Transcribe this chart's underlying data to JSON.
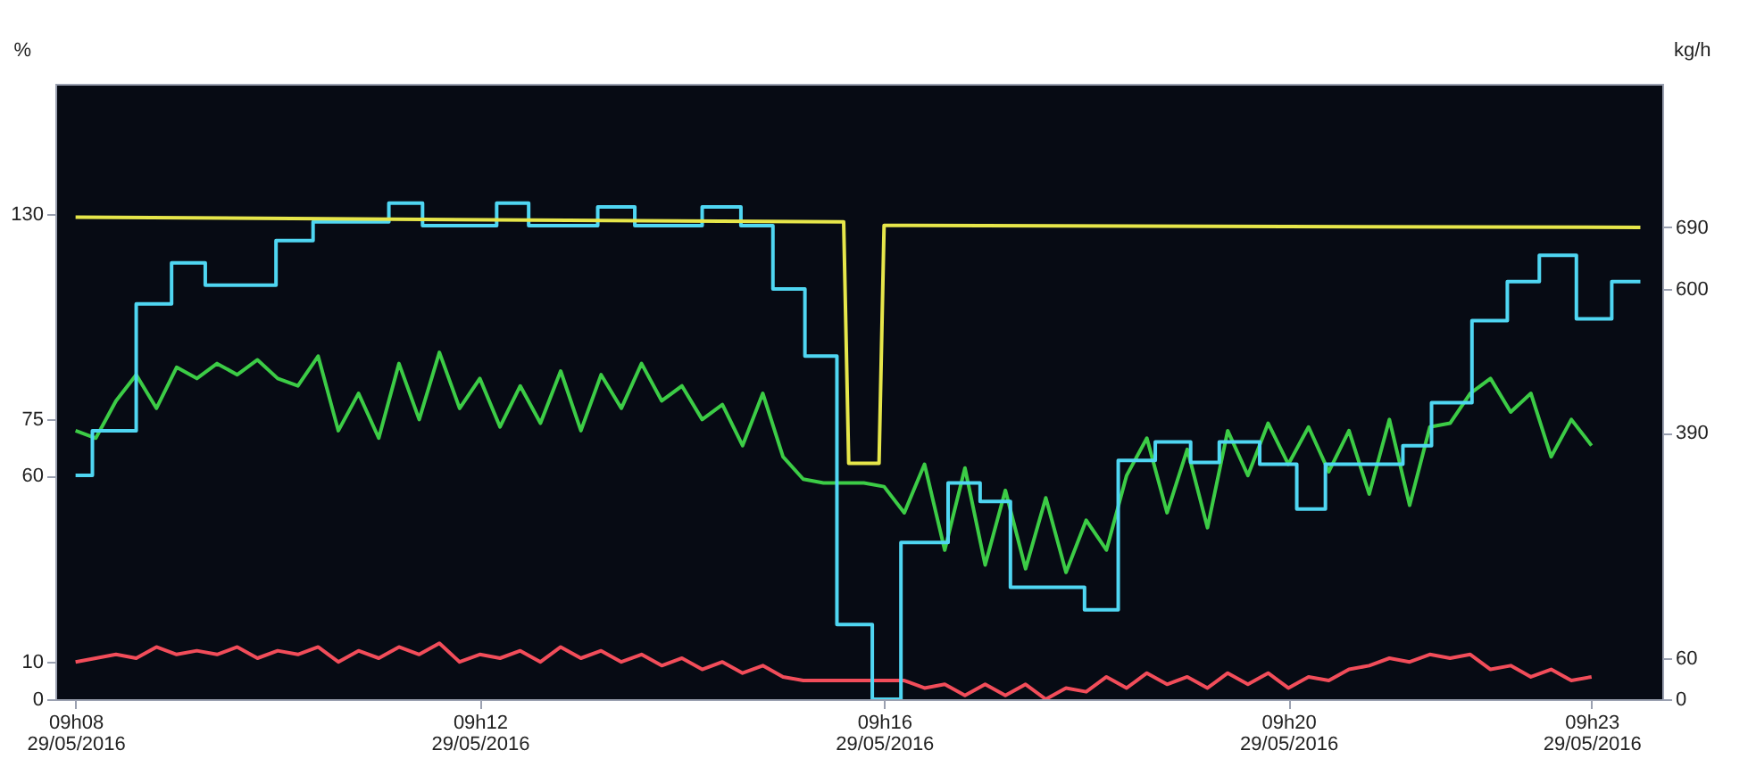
{
  "chart_data": {
    "type": "line",
    "ylabel": "%",
    "y2label": "kg/h",
    "xlim": [
      "2016-05-29T09:07:48",
      "2016-05-29T09:23:42"
    ],
    "ylim": [
      0,
      165
    ],
    "y2lim": [
      0,
      900
    ],
    "xticks": [
      {
        "value": "2016-05-29T09:08",
        "label": "09h08\n29/05/2016"
      },
      {
        "value": "2016-05-29T09:12",
        "label": "09h12\n29/05/2016"
      },
      {
        "value": "2016-05-29T09:16",
        "label": "09h16\n29/05/2016"
      },
      {
        "value": "2016-05-29T09:20",
        "label": "09h20\n29/05/2016"
      },
      {
        "value": "2016-05-29T09:23",
        "label": "09h23\n29/05/2016"
      }
    ],
    "yticks": [
      0,
      10,
      60,
      75,
      130
    ],
    "y2ticks": [
      0,
      60,
      390,
      600,
      690
    ],
    "grid": false,
    "marker": "none",
    "line_style": "solid",
    "x": [
      "2016-05-29T09:08:00",
      "2016-05-29T09:08:12",
      "2016-05-29T09:08:24",
      "2016-05-29T09:08:36",
      "2016-05-29T09:08:48",
      "2016-05-29T09:09:00",
      "2016-05-29T09:09:12",
      "2016-05-29T09:09:24",
      "2016-05-29T09:09:36",
      "2016-05-29T09:09:48",
      "2016-05-29T09:10:00",
      "2016-05-29T09:10:12",
      "2016-05-29T09:10:24",
      "2016-05-29T09:10:36",
      "2016-05-29T09:10:48",
      "2016-05-29T09:11:00",
      "2016-05-29T09:11:12",
      "2016-05-29T09:11:24",
      "2016-05-29T09:11:36",
      "2016-05-29T09:11:48",
      "2016-05-29T09:12:00",
      "2016-05-29T09:12:12",
      "2016-05-29T09:12:24",
      "2016-05-29T09:12:36",
      "2016-05-29T09:12:48",
      "2016-05-29T09:13:00",
      "2016-05-29T09:13:12",
      "2016-05-29T09:13:24",
      "2016-05-29T09:13:36",
      "2016-05-29T09:13:48",
      "2016-05-29T09:14:00",
      "2016-05-29T09:14:12",
      "2016-05-29T09:14:24",
      "2016-05-29T09:14:36",
      "2016-05-29T09:14:48",
      "2016-05-29T09:15:00",
      "2016-05-29T09:15:12",
      "2016-05-29T09:15:24",
      "2016-05-29T09:15:36",
      "2016-05-29T09:15:48",
      "2016-05-29T09:16:00",
      "2016-05-29T09:16:12",
      "2016-05-29T09:16:24",
      "2016-05-29T09:16:36",
      "2016-05-29T09:16:48",
      "2016-05-29T09:17:00",
      "2016-05-29T09:17:12",
      "2016-05-29T09:17:24",
      "2016-05-29T09:17:36",
      "2016-05-29T09:17:48",
      "2016-05-29T09:18:00",
      "2016-05-29T09:18:12",
      "2016-05-29T09:18:24",
      "2016-05-29T09:18:36",
      "2016-05-29T09:18:48",
      "2016-05-29T09:19:00",
      "2016-05-29T09:19:12",
      "2016-05-29T09:19:24",
      "2016-05-29T09:19:36",
      "2016-05-29T09:19:48",
      "2016-05-29T09:20:00",
      "2016-05-29T09:20:12",
      "2016-05-29T09:20:24",
      "2016-05-29T09:20:36",
      "2016-05-29T09:20:48",
      "2016-05-29T09:21:00",
      "2016-05-29T09:21:12",
      "2016-05-29T09:21:24",
      "2016-05-29T09:21:36",
      "2016-05-29T09:21:48",
      "2016-05-29T09:22:00",
      "2016-05-29T09:22:12",
      "2016-05-29T09:22:24",
      "2016-05-29T09:22:36",
      "2016-05-29T09:22:48",
      "2016-05-29T09:23:00"
    ],
    "series": [
      {
        "type": "line",
        "axis": "y2",
        "color": "#e6e64a",
        "x": [
          "2016-05-29T09:08:00",
          "2016-05-29T09:15:36",
          "2016-05-29T09:15:39",
          "2016-05-29T09:15:57",
          "2016-05-29T09:16:00",
          "2016-05-29T09:23:29"
        ],
        "values": [
          705,
          698,
          345,
          345,
          693,
          690
        ]
      },
      {
        "type": "line",
        "color": "#3ccc46",
        "values": [
          72,
          70,
          80,
          87,
          78,
          89,
          86,
          90,
          87,
          91,
          86,
          84,
          92,
          72,
          82,
          70,
          90,
          75,
          93,
          78,
          86,
          73,
          84,
          74,
          88,
          72,
          87,
          78,
          90,
          80,
          84,
          75,
          79,
          68,
          82,
          65,
          59,
          58,
          58,
          58,
          57,
          50,
          63,
          40,
          62,
          36,
          56,
          35,
          54,
          34,
          48,
          40,
          60,
          70,
          50,
          67,
          46,
          72,
          60,
          74,
          63,
          73,
          61,
          72,
          55,
          75,
          52,
          73,
          74,
          82,
          86,
          77,
          82,
          65,
          75,
          68
        ]
      },
      {
        "type": "line",
        "color": "#f24d5a",
        "values": [
          10,
          11,
          12,
          11,
          14,
          12,
          13,
          12,
          14,
          11,
          13,
          12,
          14,
          10,
          13,
          11,
          14,
          12,
          15,
          10,
          12,
          11,
          13,
          10,
          14,
          11,
          13,
          10,
          12,
          9,
          11,
          8,
          10,
          7,
          9,
          6,
          5,
          5,
          5,
          5,
          5,
          5,
          3,
          4,
          1,
          4,
          1,
          4,
          0,
          3,
          2,
          6,
          3,
          7,
          4,
          6,
          3,
          7,
          4,
          7,
          3,
          6,
          5,
          8,
          9,
          11,
          10,
          12,
          11,
          12,
          8,
          9,
          6,
          8,
          5,
          6
        ]
      },
      {
        "type": "step",
        "color": "#4fd6f2",
        "x": [
          "2016-05-29T09:08:00",
          "2016-05-29T09:08:10",
          "2016-05-29T09:08:36",
          "2016-05-29T09:08:57",
          "2016-05-29T09:09:17",
          "2016-05-29T09:09:59",
          "2016-05-29T09:10:21",
          "2016-05-29T09:11:06",
          "2016-05-29T09:11:26",
          "2016-05-29T09:12:10",
          "2016-05-29T09:12:29",
          "2016-05-29T09:13:10",
          "2016-05-29T09:13:32",
          "2016-05-29T09:14:12",
          "2016-05-29T09:14:35",
          "2016-05-29T09:14:54",
          "2016-05-29T09:15:13",
          "2016-05-29T09:15:32",
          "2016-05-29T09:15:53",
          "2016-05-29T09:16:10",
          "2016-05-29T09:16:38",
          "2016-05-29T09:16:57",
          "2016-05-29T09:17:15",
          "2016-05-29T09:17:59",
          "2016-05-29T09:18:19",
          "2016-05-29T09:18:41",
          "2016-05-29T09:19:02",
          "2016-05-29T09:19:19",
          "2016-05-29T09:19:43",
          "2016-05-29T09:20:05",
          "2016-05-29T09:20:22",
          "2016-05-29T09:21:08",
          "2016-05-29T09:21:25",
          "2016-05-29T09:21:49",
          "2016-05-29T09:22:10",
          "2016-05-29T09:22:29",
          "2016-05-29T09:22:51",
          "2016-05-29T09:23:12",
          "2016-05-29T09:23:29"
        ],
        "values": [
          60,
          72,
          106,
          117,
          111,
          123,
          128,
          133,
          127,
          133,
          127,
          132,
          127,
          132,
          127,
          110,
          92,
          20,
          0,
          42,
          58,
          53,
          30,
          24,
          64,
          69,
          63.5,
          69,
          63,
          51,
          63,
          68,
          79.5,
          101.5,
          112,
          119,
          102,
          112,
          112
        ]
      }
    ]
  }
}
